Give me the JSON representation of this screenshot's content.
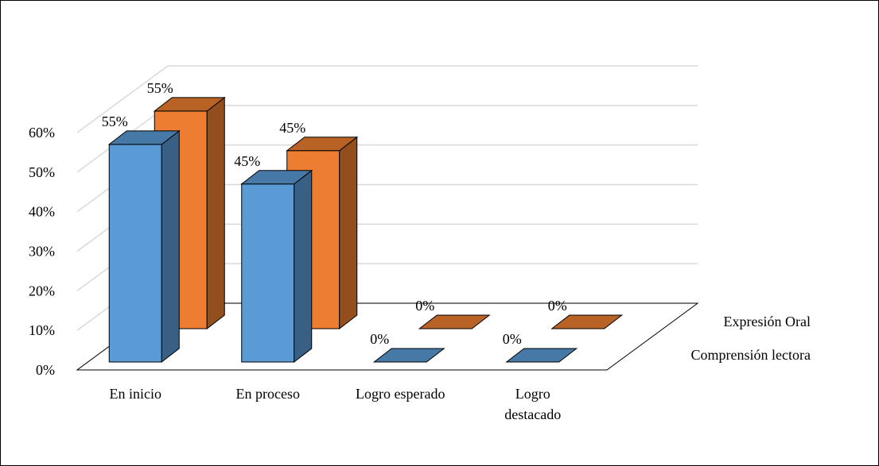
{
  "chart_data": {
    "type": "bar",
    "style": "3d-clustered-column",
    "categories": [
      "En inicio",
      "En proceso",
      "Logro esperado",
      "Logro destacado"
    ],
    "series": [
      {
        "name": "Comprensión lectora",
        "values": [
          0.55,
          0.45,
          0.0,
          0.0
        ],
        "labels": [
          "55%",
          "45%",
          "0%",
          "0%"
        ],
        "color": "#5B9BD5"
      },
      {
        "name": "Expresión Oral",
        "values": [
          0.55,
          0.45,
          0.0,
          0.0
        ],
        "labels": [
          "55%",
          "45%",
          "0%",
          "0%"
        ],
        "color": "#ED7D31"
      }
    ],
    "y_ticks": [
      "0%",
      "10%",
      "20%",
      "30%",
      "40%",
      "50%",
      "60%"
    ],
    "ylim": [
      0,
      0.6
    ],
    "title": "",
    "xlabel": "",
    "ylabel": "",
    "grid": true,
    "legend": "depth-axis-right"
  }
}
